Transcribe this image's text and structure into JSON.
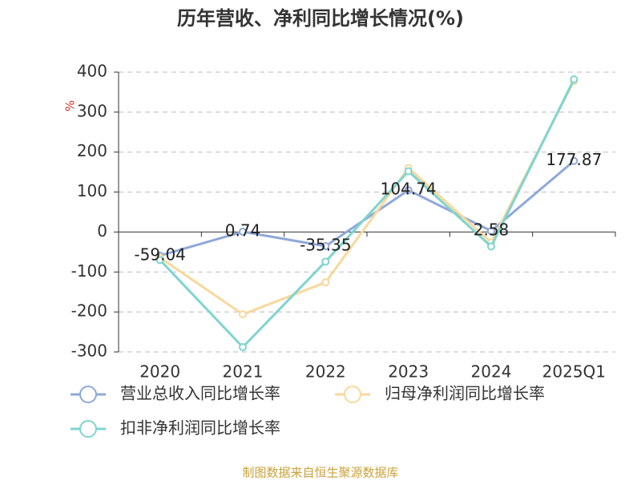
{
  "chart_data": {
    "type": "line",
    "title": "历年营收、净利同比增长情况(%)",
    "y_label": "%",
    "categories": [
      "2020",
      "2021",
      "2022",
      "2023",
      "2024",
      "2025Q1"
    ],
    "series": [
      {
        "name": "营业总收入同比增长率",
        "color": "#8fa8d8",
        "values": [
          -59.04,
          0.74,
          -35.35,
          104.74,
          2.58,
          177.87
        ]
      },
      {
        "name": "归母净利润同比增长率",
        "color": "#f9d89c",
        "values": [
          -64,
          -206,
          -126,
          160,
          -26,
          378
        ]
      },
      {
        "name": "扣非净利润同比增长率",
        "color": "#7fd4d0",
        "values": [
          -70,
          -288,
          -74,
          152,
          -36,
          382
        ]
      }
    ],
    "ylim": [
      -300,
      400
    ],
    "yticks": [
      -300,
      -200,
      -100,
      0,
      100,
      200,
      300,
      400
    ],
    "grid": true,
    "source": "制图数据来自恒生聚源数据库"
  }
}
